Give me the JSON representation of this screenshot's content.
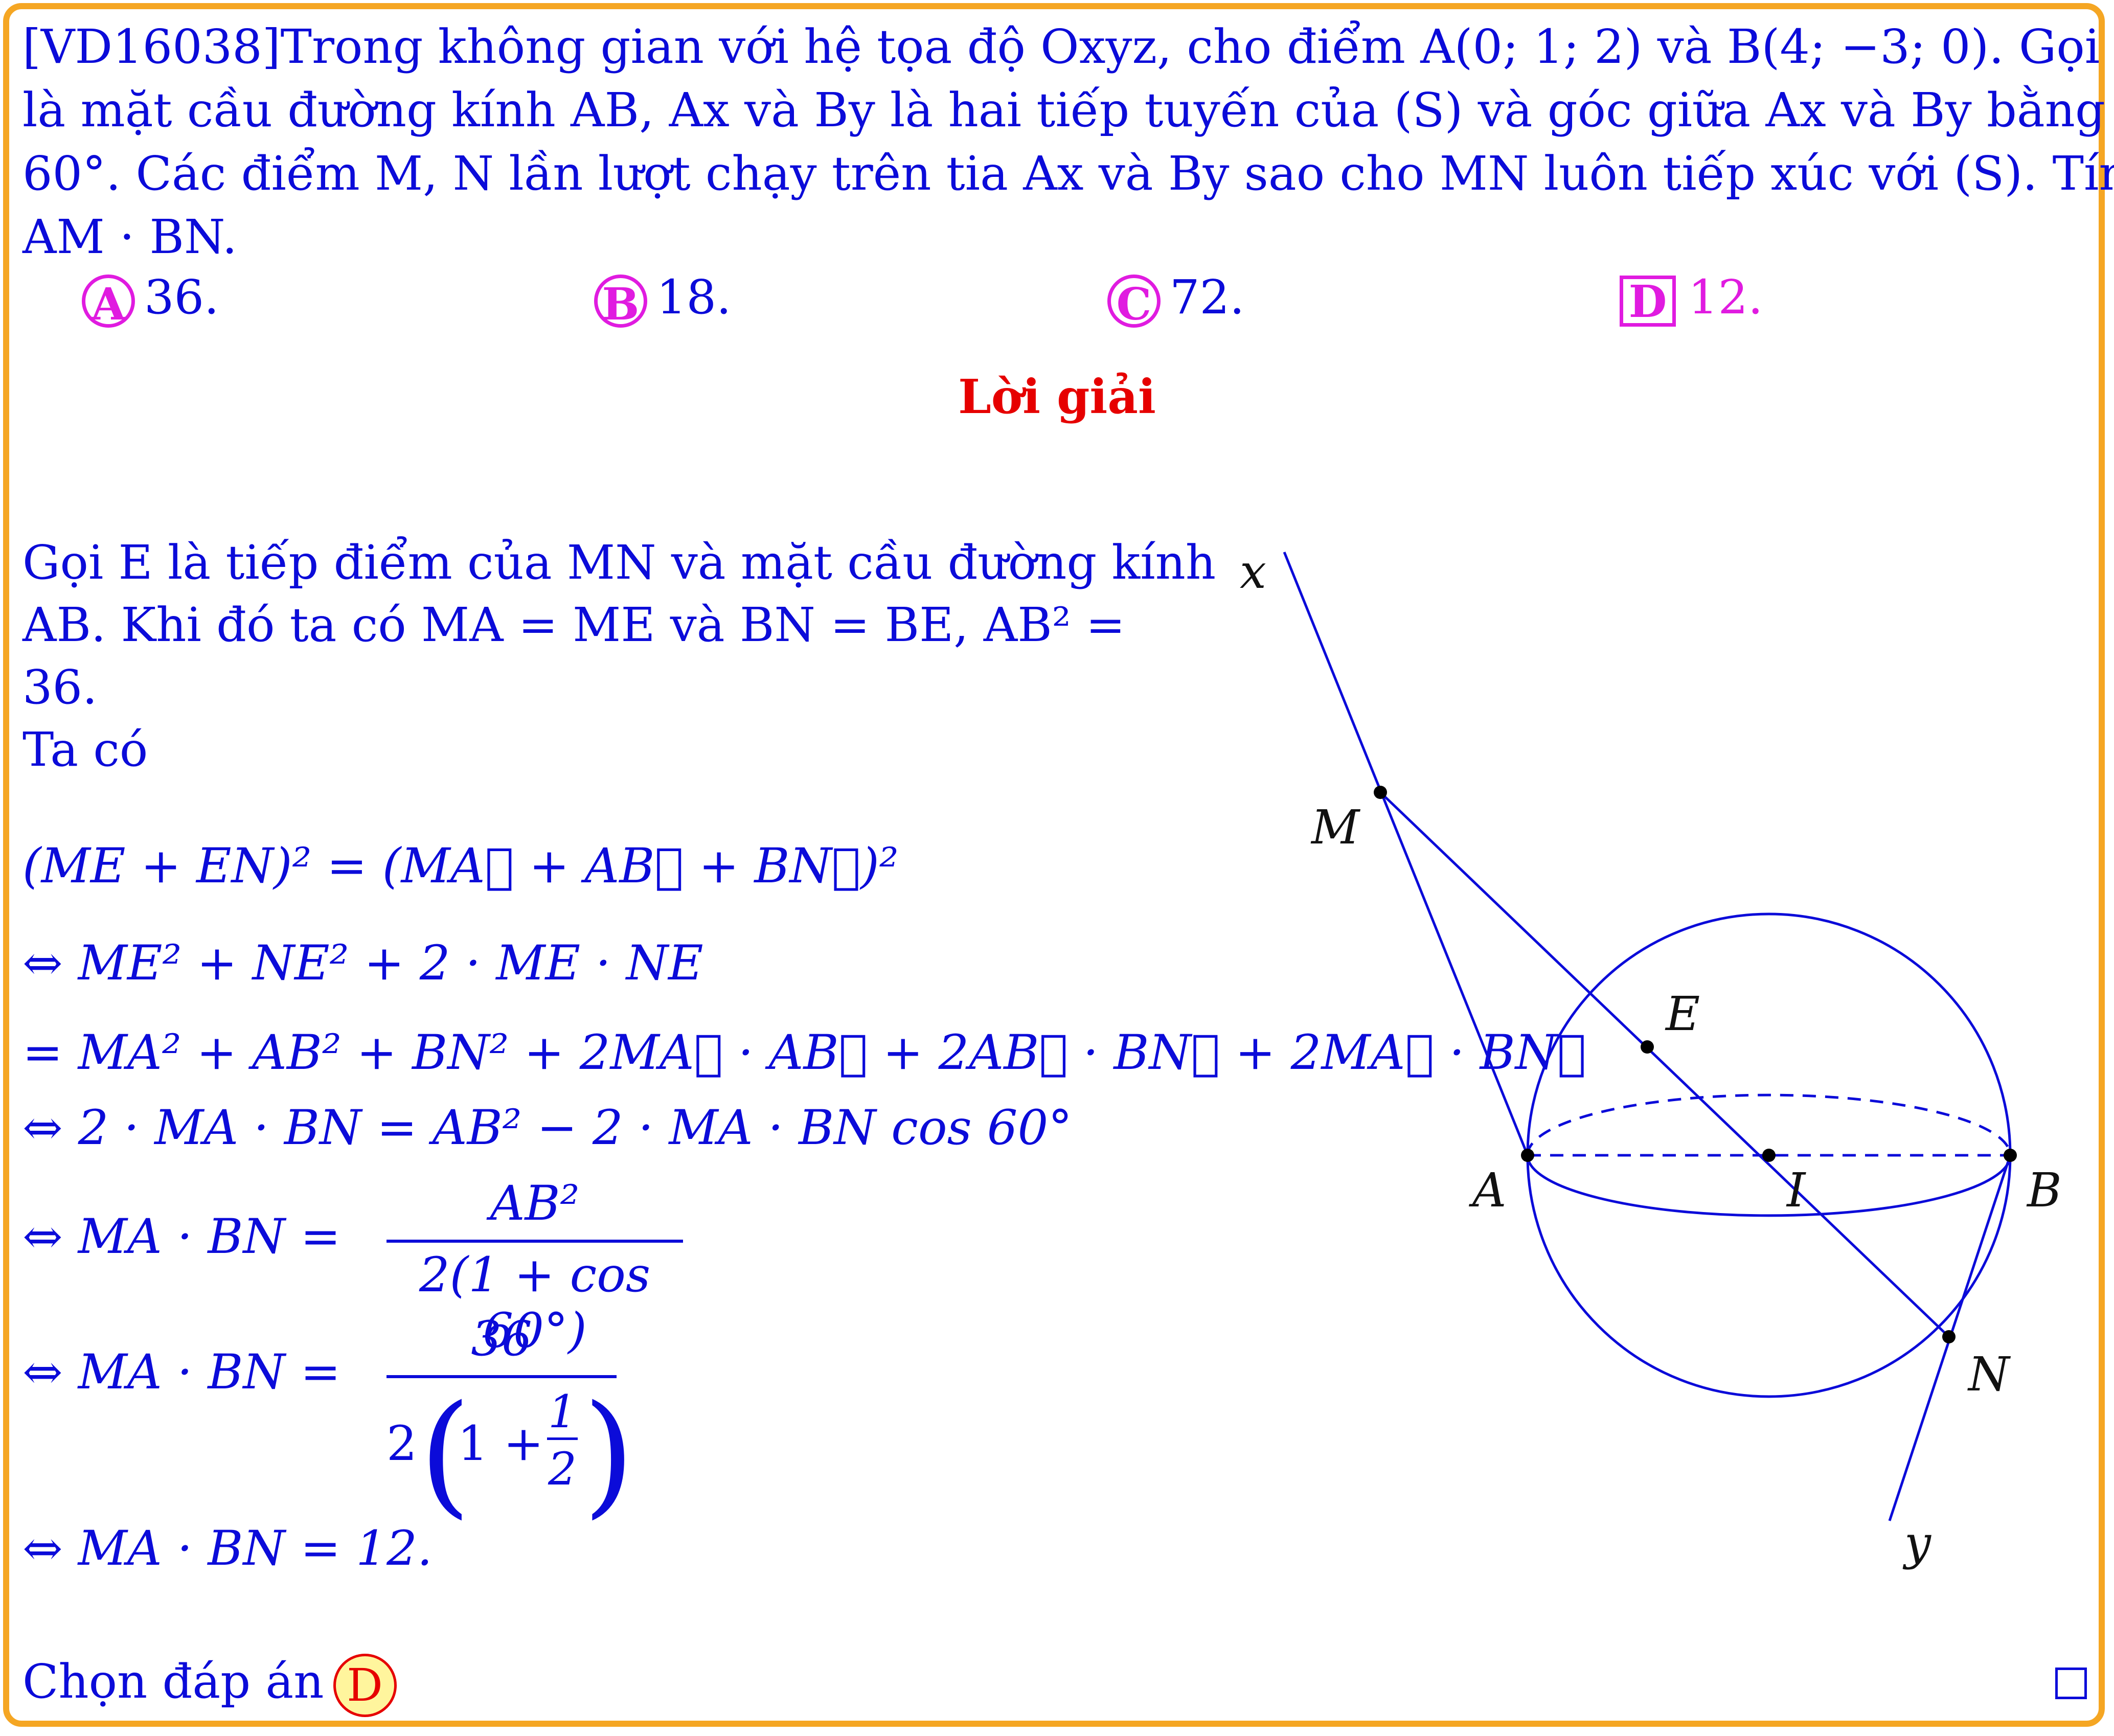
{
  "problem": {
    "lines": [
      "[VD16038]Trong không gian với hệ tọa độ Oxyz, cho điểm A(0; 1; 2) và B(4; −3; 0). Gọi (S)",
      "là mặt cầu đường kính AB, Ax và By là hai tiếp tuyến của (S) và góc giữa Ax và By bằng",
      "60°. Các điểm M, N lần lượt chạy trên tia Ax và By sao cho MN luôn tiếp xúc với (S). Tính",
      "AM · BN."
    ]
  },
  "choices": [
    {
      "letter": "A",
      "value": "36."
    },
    {
      "letter": "B",
      "value": "18."
    },
    {
      "letter": "C",
      "value": "72."
    },
    {
      "letter": "D",
      "value": "12."
    }
  ],
  "solution": {
    "title": "Lời giải",
    "intro_lines": [
      "Gọi E là tiếp điểm của MN và mặt cầu đường kính",
      "AB. Khi đó ta có MA = ME và BN = BE, AB² =",
      "36.",
      "Ta có"
    ],
    "eq1": "(ME + EN)² = (MA⃗ + AB⃗ + BN⃗)²",
    "eq2": "⇔ ME² + NE² + 2 · ME · NE",
    "eq3": "= MA² + AB² + BN² + 2MA⃗ · AB⃗ + 2AB⃗ · BN⃗ + 2MA⃗ · BN⃗",
    "eq4": "⇔ 2 · MA · BN = AB² − 2 · MA · BN cos 60°",
    "eq5_lhs": "⇔ MA · BN =",
    "eq5_num": "AB²",
    "eq5_den": "2(1 + cos 60°)",
    "eq6_lhs": "⇔ MA · BN =",
    "eq6_num": "36",
    "eq6_den_a": "2",
    "eq6_den_b": "1 +",
    "eq6_den_frac_num": "1",
    "eq6_den_frac_den": "2",
    "eq7": "⇔ MA · BN = 12.",
    "chon_label": "Chọn đáp án",
    "answer": "D"
  },
  "figure": {
    "labels": {
      "x": "x",
      "y": "y",
      "M": "M",
      "E": "E",
      "A": "A",
      "I": "I",
      "B": "B",
      "N": "N"
    },
    "line_color": "#0B0BD9"
  },
  "colors": {
    "frame": "#F5A623",
    "text": "#0B0BD9",
    "choice": "#E01BE0",
    "title": "#E60000",
    "badge_fill": "#FFF59D"
  }
}
